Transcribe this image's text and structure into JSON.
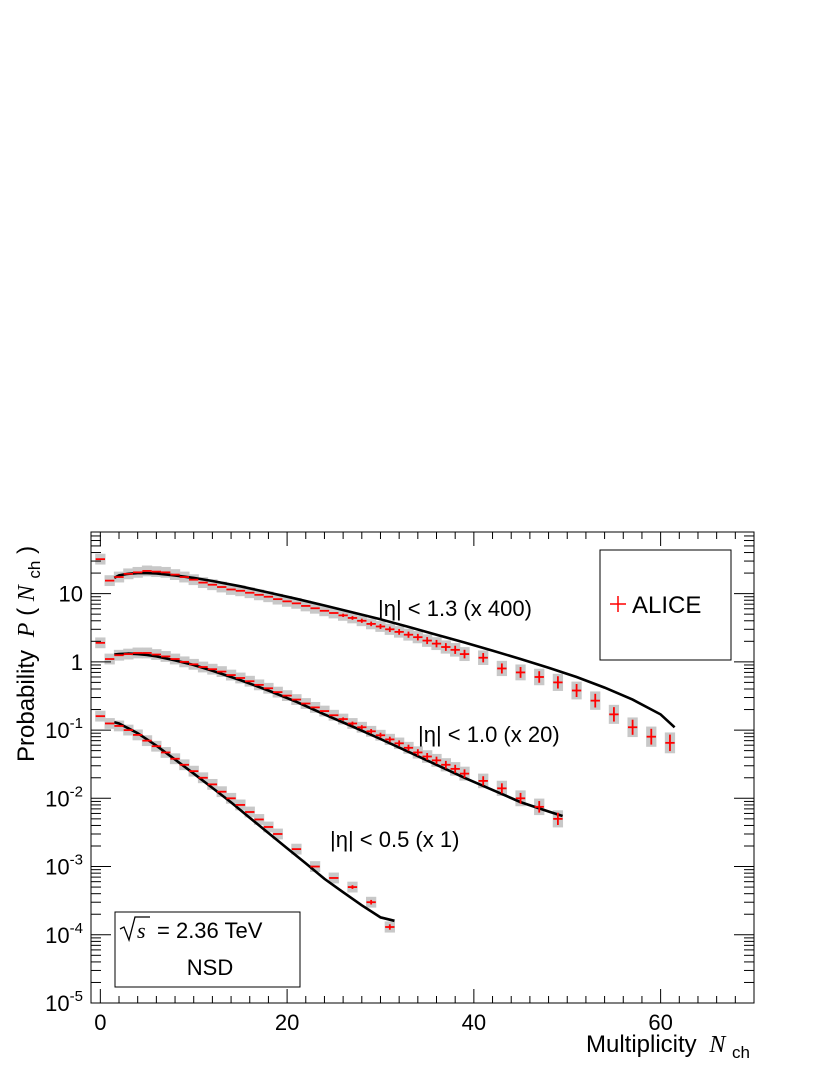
{
  "chart_data": {
    "type": "scatter",
    "xlabel": "Multiplicity",
    "xlabel_symbol": "N",
    "xlabel_sub": "ch",
    "ylabel": "Probability",
    "ylabel_symbol": "P",
    "ylabel_open": "(",
    "ylabel_sub": "ch",
    "ylabel_close": ")",
    "xlim": [
      -1,
      70
    ],
    "ylim": [
      1e-05,
      80
    ],
    "y_scale": "log",
    "x_ticks": [
      {
        "v": 0,
        "label": "0"
      },
      {
        "v": 20,
        "label": "20"
      },
      {
        "v": 40,
        "label": "40"
      },
      {
        "v": 60,
        "label": "60"
      }
    ],
    "y_ticks": [
      {
        "v": 10,
        "base": "10",
        "exp": ""
      },
      {
        "v": 1,
        "base": "1",
        "exp": ""
      },
      {
        "v": 0.1,
        "base": "10",
        "exp": "-1"
      },
      {
        "v": 0.01,
        "base": "10",
        "exp": "-2"
      },
      {
        "v": 0.001,
        "base": "10",
        "exp": "-3"
      },
      {
        "v": 0.0001,
        "base": "10",
        "exp": "-4"
      },
      {
        "v": 1e-05,
        "base": "10",
        "exp": "-5"
      }
    ],
    "grid": false,
    "legend": {
      "position": "top-right",
      "entries": [
        "ALICE"
      ]
    },
    "energy_label": {
      "sqrt": "s",
      "rest": "= 2.36 TeV",
      "line2": "NSD"
    },
    "colors": {
      "data": "#ff0000",
      "fit": "#000000",
      "syst_band": "#c8c8c8"
    },
    "series": [
      {
        "name": "ALICE",
        "label": "|η| < 1.3 (x 400)",
        "x": [
          0,
          1,
          2,
          3,
          4,
          5,
          6,
          7,
          8,
          9,
          10,
          11,
          12,
          13,
          14,
          15,
          16,
          17,
          18,
          19,
          20,
          21,
          22,
          23,
          24,
          25,
          26,
          27,
          28,
          29,
          30,
          31,
          32,
          33,
          34,
          35,
          36,
          37,
          38,
          39,
          41,
          43,
          45,
          47,
          49,
          51,
          53,
          55,
          57,
          59,
          61
        ],
        "y": [
          32,
          15.5,
          17.5,
          19.5,
          20.5,
          21.5,
          21,
          20.5,
          19,
          17.5,
          16,
          14.5,
          13.5,
          12.5,
          11.5,
          11,
          10.3,
          9.6,
          9,
          8.3,
          7.7,
          7.2,
          6.6,
          6.1,
          5.6,
          5.2,
          4.8,
          4.4,
          4,
          3.6,
          3.3,
          3,
          2.75,
          2.5,
          2.3,
          2.05,
          1.85,
          1.65,
          1.5,
          1.3,
          1.15,
          0.8,
          0.7,
          0.6,
          0.5,
          0.38,
          0.27,
          0.17,
          0.11,
          0.08,
          0.065
        ],
        "fit_x": [
          1.5,
          2,
          3,
          4,
          5,
          6,
          8,
          10,
          12,
          15,
          18,
          21,
          24,
          27,
          30,
          33,
          36,
          39,
          42,
          45,
          48,
          51,
          54,
          57,
          60,
          61.5
        ],
        "fit_y": [
          17,
          18.5,
          19.5,
          20,
          20,
          19.7,
          18.5,
          17,
          15.3,
          12.8,
          10.4,
          8.4,
          6.7,
          5.3,
          4.2,
          3.25,
          2.5,
          1.92,
          1.46,
          1.1,
          0.82,
          0.6,
          0.42,
          0.28,
          0.17,
          0.11
        ]
      },
      {
        "name": "ALICE",
        "label": "|η| < 1.0 (x 20)",
        "x": [
          0,
          1,
          2,
          3,
          4,
          5,
          6,
          7,
          8,
          9,
          10,
          11,
          12,
          13,
          14,
          15,
          16,
          17,
          18,
          19,
          20,
          21,
          22,
          23,
          24,
          25,
          26,
          27,
          28,
          29,
          30,
          31,
          32,
          33,
          34,
          35,
          36,
          37,
          38,
          39,
          41,
          43,
          45,
          47,
          49
        ],
        "y": [
          1.9,
          1.1,
          1.25,
          1.3,
          1.35,
          1.35,
          1.28,
          1.2,
          1.1,
          1.0,
          0.92,
          0.84,
          0.78,
          0.72,
          0.64,
          0.58,
          0.52,
          0.46,
          0.41,
          0.36,
          0.32,
          0.28,
          0.245,
          0.215,
          0.19,
          0.165,
          0.145,
          0.125,
          0.11,
          0.096,
          0.084,
          0.073,
          0.064,
          0.055,
          0.047,
          0.041,
          0.036,
          0.031,
          0.027,
          0.023,
          0.018,
          0.014,
          0.01,
          0.0075,
          0.005
        ],
        "fit_x": [
          1.5,
          2,
          3,
          4,
          5,
          6,
          8,
          10,
          12,
          15,
          18,
          21,
          24,
          27,
          30,
          33,
          36,
          39,
          42,
          45,
          48,
          49.5
        ],
        "fit_y": [
          1.28,
          1.3,
          1.32,
          1.3,
          1.26,
          1.2,
          1.05,
          0.9,
          0.74,
          0.54,
          0.38,
          0.26,
          0.17,
          0.113,
          0.074,
          0.048,
          0.031,
          0.02,
          0.0133,
          0.0088,
          0.0064,
          0.0055
        ]
      },
      {
        "name": "ALICE",
        "label": "|η| < 0.5 (x 1)",
        "x": [
          0,
          1,
          2,
          3,
          4,
          5,
          6,
          7,
          8,
          9,
          10,
          11,
          12,
          13,
          14,
          15,
          16,
          17,
          18,
          19,
          21,
          23,
          25,
          27,
          29,
          31
        ],
        "y": [
          0.16,
          0.125,
          0.115,
          0.1,
          0.085,
          0.07,
          0.058,
          0.047,
          0.038,
          0.031,
          0.025,
          0.02,
          0.016,
          0.0125,
          0.01,
          0.008,
          0.0063,
          0.0049,
          0.0038,
          0.003,
          0.0018,
          0.001,
          0.00068,
          0.0005,
          0.0003,
          0.00013
        ],
        "fit_x": [
          1.5,
          2,
          4,
          6,
          8,
          10,
          12,
          14,
          16,
          18,
          20,
          22,
          24,
          26,
          28,
          30,
          31.5
        ],
        "fit_y": [
          0.13,
          0.125,
          0.09,
          0.059,
          0.037,
          0.023,
          0.0142,
          0.0087,
          0.0052,
          0.0031,
          0.00185,
          0.00111,
          0.00066,
          0.00042,
          0.00027,
          0.00018,
          0.00016
        ]
      }
    ]
  }
}
